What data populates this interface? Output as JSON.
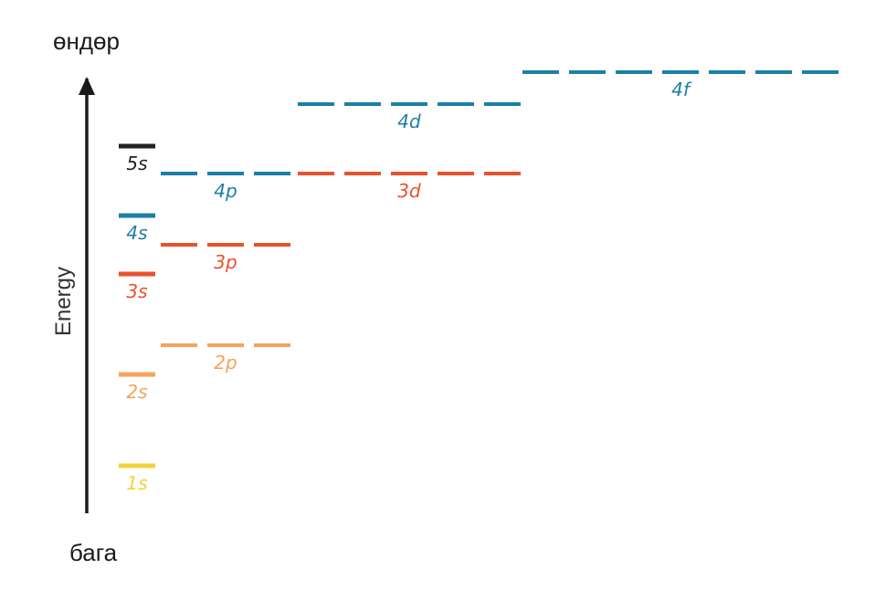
{
  "labels": {
    "high": "өндөр",
    "low": "бага",
    "axis": "Energy"
  },
  "colors": {
    "yellow": "#f2d23c",
    "light_orange": "#f5a25d",
    "red": "#e8522e",
    "teal": "#1c7fa6",
    "black": "#222222"
  },
  "levels": [
    {
      "id": "1s",
      "label": "1s",
      "digit": "1",
      "letter": "s",
      "energy": 1.0,
      "count": 1,
      "color": "yellow"
    },
    {
      "id": "2s",
      "label": "2s",
      "digit": "2",
      "letter": "s",
      "energy": 2.0,
      "count": 1,
      "color": "light_orange"
    },
    {
      "id": "2p",
      "label": "2p",
      "digit": "2",
      "letter": "p",
      "energy": 2.32,
      "count": 3,
      "color": "light_orange"
    },
    {
      "id": "3s",
      "label": "3s",
      "digit": "3",
      "letter": "s",
      "energy": 3.1,
      "count": 1,
      "color": "red"
    },
    {
      "id": "3p",
      "label": "3p",
      "digit": "3",
      "letter": "p",
      "energy": 3.42,
      "count": 3,
      "color": "red"
    },
    {
      "id": "4s",
      "label": "4s",
      "digit": "4",
      "letter": "s",
      "energy": 3.74,
      "count": 1,
      "color": "teal"
    },
    {
      "id": "3d",
      "label": "3d",
      "digit": "3",
      "letter": "d",
      "energy": 4.2,
      "count": 5,
      "color": "red"
    },
    {
      "id": "4p",
      "label": "4p",
      "digit": "4",
      "letter": "p",
      "energy": 4.2,
      "count": 3,
      "color": "teal"
    },
    {
      "id": "5s",
      "label": "5s",
      "digit": "5",
      "letter": "s",
      "energy": 4.5,
      "count": 1,
      "color": "black"
    },
    {
      "id": "4d",
      "label": "4d",
      "digit": "4",
      "letter": "d",
      "energy": 4.96,
      "count": 5,
      "color": "teal"
    },
    {
      "id": "4f",
      "label": "4f",
      "digit": "4",
      "letter": "f",
      "energy": 5.31,
      "count": 7,
      "color": "teal"
    }
  ]
}
